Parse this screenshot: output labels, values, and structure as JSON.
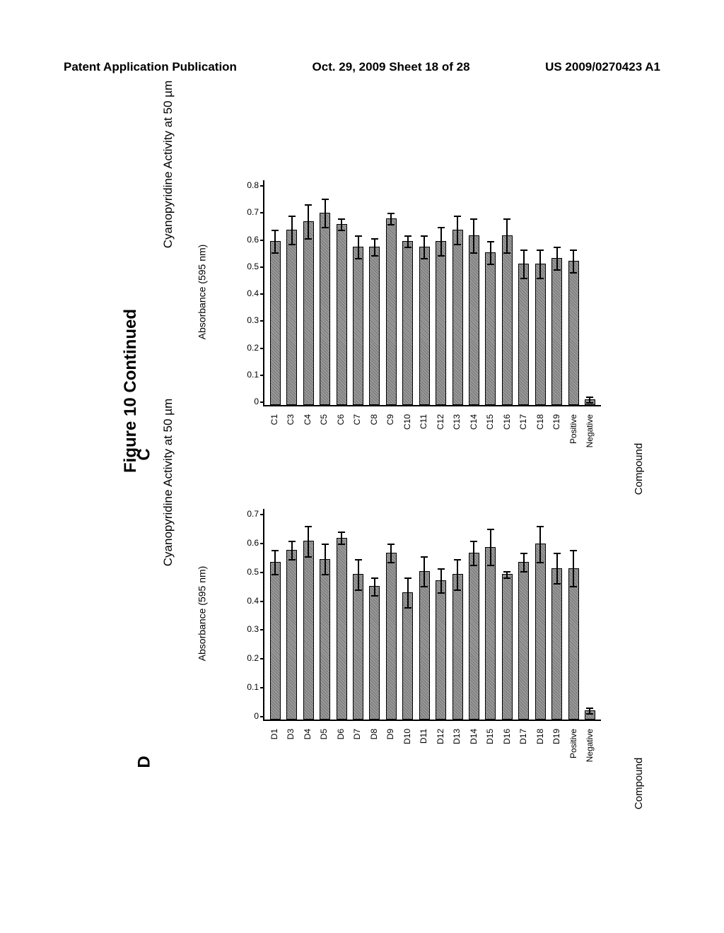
{
  "header": {
    "left": "Patent Application Publication",
    "middle": "Oct. 29, 2009  Sheet 18 of 28",
    "right": "US 2009/0270423 A1"
  },
  "figure_title": "Figure 10 Continued",
  "chart_c": {
    "panel_letter": "C",
    "type": "bar",
    "title": "Cyanopyridine Activity at 50 µm",
    "ylabel": "Absorbance (595 nm)",
    "xlabel": "Compound",
    "ymax": 0.8,
    "ytick_step": 0.1,
    "yticks": [
      "0",
      "0.1",
      "0.2",
      "0.3",
      "0.4",
      "0.5",
      "0.6",
      "0.7",
      "0.8"
    ],
    "bar_color": "#888888",
    "border_color": "#000000",
    "background_color": "#ffffff",
    "categories": [
      "C1",
      "C3",
      "C4",
      "C5",
      "C6",
      "C7",
      "C8",
      "C9",
      "C10",
      "C11",
      "C12",
      "C13",
      "C14",
      "C15",
      "C16",
      "C17",
      "C18",
      "C19",
      "Positive",
      "Negative"
    ],
    "values": [
      0.58,
      0.62,
      0.65,
      0.68,
      0.64,
      0.56,
      0.56,
      0.66,
      0.58,
      0.56,
      0.58,
      0.62,
      0.6,
      0.54,
      0.6,
      0.5,
      0.5,
      0.52,
      0.51,
      0.02
    ],
    "errors": [
      0.04,
      0.05,
      0.06,
      0.05,
      0.02,
      0.04,
      0.03,
      0.02,
      0.02,
      0.04,
      0.05,
      0.05,
      0.06,
      0.04,
      0.06,
      0.05,
      0.05,
      0.04,
      0.04,
      0.01
    ]
  },
  "chart_d": {
    "panel_letter": "D",
    "type": "bar",
    "title": "Cyanopyridine Activity at 50 µm",
    "ylabel": "Absorbance (595 nm)",
    "xlabel": "Compound",
    "ymax": 0.7,
    "ytick_step": 0.1,
    "yticks": [
      "0",
      "0.1",
      "0.2",
      "0.3",
      "0.4",
      "0.5",
      "0.6",
      "0.7"
    ],
    "bar_color": "#888888",
    "border_color": "#000000",
    "background_color": "#ffffff",
    "categories": [
      "D1",
      "D3",
      "D4",
      "D5",
      "D6",
      "D7",
      "D8",
      "D9",
      "D10",
      "D11",
      "D12",
      "D13",
      "D14",
      "D15",
      "D16",
      "D17",
      "D18",
      "D19",
      "Positive",
      "Negative"
    ],
    "values": [
      0.52,
      0.56,
      0.59,
      0.53,
      0.6,
      0.48,
      0.44,
      0.55,
      0.42,
      0.49,
      0.46,
      0.48,
      0.55,
      0.57,
      0.48,
      0.52,
      0.58,
      0.5,
      0.5,
      0.03
    ],
    "errors": [
      0.04,
      0.03,
      0.05,
      0.05,
      0.02,
      0.05,
      0.03,
      0.03,
      0.05,
      0.05,
      0.04,
      0.05,
      0.04,
      0.06,
      0.01,
      0.03,
      0.06,
      0.05,
      0.06,
      0.01
    ]
  }
}
